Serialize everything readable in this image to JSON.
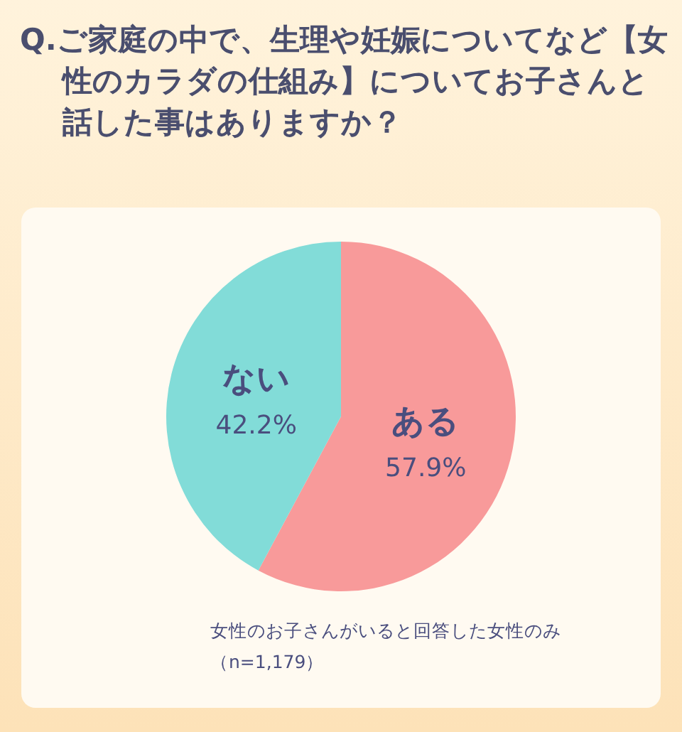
{
  "chart_data": {
    "type": "pie",
    "title": "Q.ご家庭の中で、生理や妊娠についてなど【女性のカラダの仕組み】についてお子さんと話した事はありますか？",
    "categories": [
      "ある",
      "ない"
    ],
    "values": [
      57.9,
      42.2
    ],
    "colors": [
      "#f89a9a",
      "#82dcd8"
    ],
    "value_labels": [
      "57.9%",
      "42.2%"
    ],
    "legend": false,
    "annotations": [
      "女性のお子さんがいると回答した女性のみ",
      "（n=1,179）"
    ]
  }
}
